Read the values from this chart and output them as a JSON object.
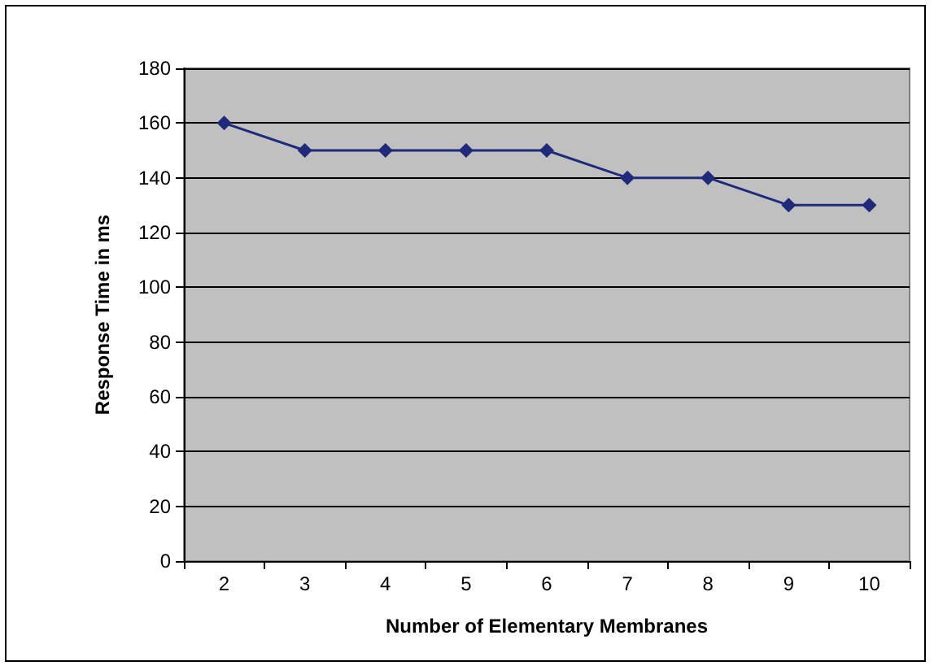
{
  "chart_data": {
    "type": "line",
    "xlabel": "Number of Elementary Membranes",
    "ylabel": "Response Time in ms",
    "categories": [
      "2",
      "3",
      "4",
      "5",
      "6",
      "7",
      "8",
      "9",
      "10"
    ],
    "series": [
      {
        "color": "#1f2a7a",
        "values": [
          160,
          150,
          150,
          150,
          150,
          140,
          140,
          130,
          130
        ]
      }
    ],
    "ylim": [
      0,
      180
    ],
    "yticks": [
      0,
      20,
      40,
      60,
      80,
      100,
      120,
      140,
      160,
      180
    ],
    "grid": "y",
    "marker": "diamond",
    "line_style": "solid"
  }
}
